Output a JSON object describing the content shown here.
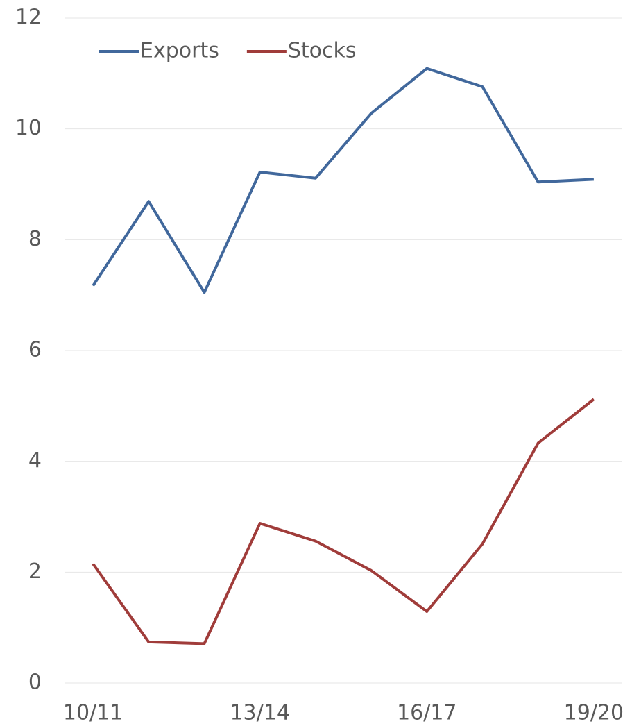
{
  "chart_data": {
    "type": "line",
    "categories": [
      "10/11",
      null,
      null,
      "13/14",
      null,
      null,
      "16/17",
      null,
      null,
      "19/20"
    ],
    "series": [
      {
        "name": "Exports",
        "color": "#41689c",
        "values": [
          7.17,
          8.69,
          7.05,
          9.22,
          9.11,
          10.28,
          11.09,
          10.76,
          9.04,
          9.09
        ]
      },
      {
        "name": "Stocks",
        "color": "#a03c3a",
        "values": [
          2.15,
          0.74,
          0.71,
          2.88,
          2.56,
          2.03,
          1.29,
          2.51,
          4.33,
          5.12
        ]
      }
    ],
    "ylim": [
      0,
      12
    ],
    "yticks": [
      0,
      2,
      4,
      6,
      8,
      10,
      12
    ],
    "grid": true,
    "legend": "top-left"
  }
}
